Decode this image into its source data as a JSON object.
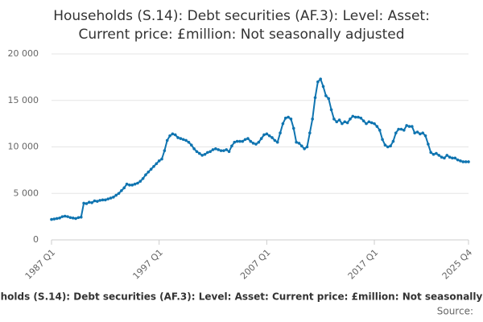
{
  "chart_data": {
    "type": "line",
    "title": [
      "Households (S.14): Debt securities (AF.3): Level: Asset:",
      "Current price: £million: Not seasonally adjusted"
    ],
    "footer": "holds (S.14): Debt securities (AF.3): Level: Asset: Current price: £million: Not seasonally",
    "source": "Source:",
    "categories": [
      "1987 Q1",
      null,
      null,
      null,
      null,
      null,
      null,
      null,
      null,
      null,
      null,
      null,
      null,
      null,
      null,
      null,
      null,
      null,
      null,
      null,
      null,
      null,
      null,
      null,
      null,
      null,
      null,
      null,
      null,
      null,
      null,
      null,
      null,
      null,
      null,
      null,
      null,
      null,
      null,
      null,
      "1997 Q1",
      null,
      null,
      null,
      null,
      null,
      null,
      null,
      null,
      null,
      null,
      null,
      null,
      null,
      null,
      null,
      null,
      null,
      null,
      null,
      null,
      null,
      null,
      null,
      null,
      null,
      null,
      null,
      null,
      null,
      null,
      null,
      null,
      null,
      null,
      null,
      null,
      null,
      null,
      null,
      "2007 Q1",
      null,
      null,
      null,
      null,
      null,
      null,
      null,
      null,
      null,
      null,
      null,
      null,
      null,
      null,
      null,
      null,
      null,
      null,
      null,
      null,
      null,
      null,
      null,
      null,
      null,
      null,
      null,
      null,
      null,
      null,
      null,
      null,
      null,
      null,
      null,
      null,
      null,
      null,
      null,
      "2017 Q1",
      null,
      null,
      null,
      null,
      null,
      null,
      null,
      null,
      null,
      null,
      null,
      null,
      null,
      null,
      null,
      null,
      null,
      null,
      null,
      null,
      null,
      null,
      null,
      null,
      null,
      null,
      null,
      null,
      null,
      null,
      null,
      null,
      null,
      null,
      "2025 Q4"
    ],
    "values": [
      2200,
      2250,
      2300,
      2350,
      2500,
      2550,
      2500,
      2400,
      2350,
      2300,
      2400,
      2450,
      3950,
      3900,
      4050,
      4000,
      4200,
      4150,
      4250,
      4300,
      4300,
      4400,
      4500,
      4600,
      4800,
      5000,
      5300,
      5600,
      6000,
      5900,
      5900,
      6000,
      6100,
      6300,
      6600,
      7000,
      7300,
      7600,
      7900,
      8200,
      8500,
      8700,
      9600,
      10700,
      11200,
      11400,
      11300,
      11000,
      10900,
      10800,
      10700,
      10500,
      10200,
      9800,
      9500,
      9300,
      9100,
      9200,
      9400,
      9500,
      9700,
      9800,
      9700,
      9600,
      9600,
      9700,
      9500,
      10100,
      10500,
      10600,
      10600,
      10600,
      10800,
      10900,
      10600,
      10400,
      10300,
      10500,
      10900,
      11300,
      11400,
      11200,
      11000,
      10700,
      10500,
      11500,
      12500,
      13100,
      13200,
      13000,
      12000,
      10500,
      10400,
      10100,
      9800,
      10000,
      11500,
      13000,
      15300,
      17000,
      17300,
      16500,
      15500,
      15200,
      14000,
      13000,
      12700,
      12900,
      12500,
      12700,
      12600,
      13000,
      13300,
      13200,
      13200,
      13100,
      12800,
      12500,
      12700,
      12600,
      12500,
      12200,
      11800,
      10800,
      10200,
      10000,
      10100,
      10600,
      11500,
      11900,
      11900,
      11800,
      12300,
      12200,
      12200,
      11500,
      11600,
      11400,
      11500,
      11200,
      10300,
      9400,
      9200,
      9300,
      9100,
      8900,
      8800,
      9100,
      8900,
      8800,
      8800,
      8600,
      8500,
      8400,
      8400,
      8400
    ],
    "color": "#0f74b0",
    "ylim": [
      0,
      20000
    ],
    "yticks": [
      0,
      {
        "value": 5000,
        "label": "5 000"
      },
      {
        "value": 10000,
        "label": "10 000"
      },
      {
        "value": 15000,
        "label": "15 000"
      },
      {
        "value": 20000,
        "label": "20 000"
      }
    ],
    "grid": true
  }
}
